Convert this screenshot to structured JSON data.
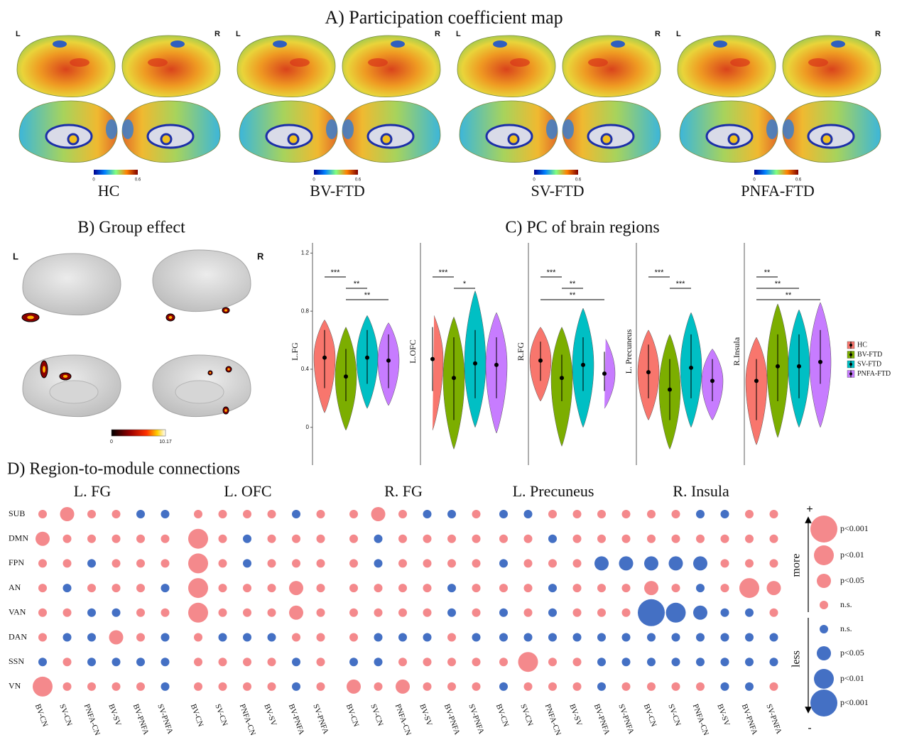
{
  "panel_a": {
    "title": "A) Participation coefficient map",
    "hemisphere_labels": [
      "L",
      "R"
    ],
    "groups": [
      "HC",
      "BV-FTD",
      "SV-FTD",
      "PNFA-FTD"
    ],
    "colorbar_ticks": [
      0,
      0.6
    ]
  },
  "panel_b": {
    "title": "B) Group effect",
    "hemisphere_labels": [
      "L",
      "R"
    ],
    "colorbar_ticks": [
      0,
      10.17
    ]
  },
  "chart_data": {
    "type": "violin",
    "title": "C) PC of brain regions",
    "categories": [
      "L.FG",
      "L.OFC",
      "R.FG",
      "L. Precuneus",
      "R.Insula"
    ],
    "ylim": [
      -0.26,
      1.27
    ],
    "yticks": [
      0,
      0.4,
      0.8,
      1.2
    ],
    "series": [
      {
        "name": "HC",
        "color": "#F8766D",
        "values": [
          0.48,
          0.47,
          0.46,
          0.38,
          0.32
        ],
        "lower": [
          0.27,
          0.25,
          0.32,
          0.2,
          0.05
        ],
        "upper": [
          0.67,
          0.69,
          0.59,
          0.57,
          0.47
        ],
        "min": [
          0.1,
          -0.02,
          0.18,
          0.05,
          -0.12
        ],
        "max": [
          0.74,
          0.79,
          0.69,
          0.67,
          0.62
        ]
      },
      {
        "name": "BV-FTD",
        "color": "#7CAE00",
        "values": [
          0.35,
          0.34,
          0.34,
          0.26,
          0.42
        ],
        "lower": [
          0.18,
          0.05,
          0.18,
          0.05,
          0.18
        ],
        "upper": [
          0.54,
          0.62,
          0.5,
          0.47,
          0.64
        ],
        "min": [
          -0.02,
          -0.15,
          -0.13,
          -0.15,
          -0.07
        ],
        "max": [
          0.69,
          0.76,
          0.69,
          0.64,
          0.85
        ]
      },
      {
        "name": "SV-FTD",
        "color": "#00BFC4",
        "values": [
          0.48,
          0.44,
          0.43,
          0.41,
          0.42
        ],
        "lower": [
          0.3,
          0.2,
          0.25,
          0.2,
          0.2
        ],
        "upper": [
          0.67,
          0.67,
          0.62,
          0.64,
          0.64
        ],
        "min": [
          0.13,
          0,
          0,
          0,
          0
        ],
        "max": [
          0.77,
          0.94,
          0.82,
          0.79,
          0.81
        ]
      },
      {
        "name": "PNFA-FTD",
        "color": "#C77CFF",
        "values": [
          0.46,
          0.43,
          0.37,
          0.32,
          0.45
        ],
        "lower": [
          0.27,
          0.2,
          0.25,
          0.18,
          0.3
        ],
        "upper": [
          0.64,
          0.62,
          0.52,
          0.47,
          0.67
        ],
        "min": [
          0.15,
          -0.04,
          0.13,
          0.05,
          0
        ],
        "max": [
          0.72,
          0.79,
          0.62,
          0.54,
          0.86
        ]
      }
    ],
    "significance": [
      [
        {
          "groups": [
            "HC",
            "BV-FTD"
          ],
          "label": "***"
        },
        {
          "groups": [
            "BV-FTD",
            "SV-FTD"
          ],
          "label": "**"
        },
        {
          "groups": [
            "BV-FTD",
            "PNFA-FTD"
          ],
          "label": "**"
        }
      ],
      [
        {
          "groups": [
            "HC",
            "BV-FTD"
          ],
          "label": "***"
        },
        {
          "groups": [
            "BV-FTD",
            "SV-FTD"
          ],
          "label": "*"
        }
      ],
      [
        {
          "groups": [
            "HC",
            "BV-FTD"
          ],
          "label": "***"
        },
        {
          "groups": [
            "BV-FTD",
            "SV-FTD"
          ],
          "label": "**"
        },
        {
          "groups": [
            "HC",
            "PNFA-FTD"
          ],
          "label": "**"
        }
      ],
      [
        {
          "groups": [
            "HC",
            "BV-FTD"
          ],
          "label": "***"
        },
        {
          "groups": [
            "BV-FTD",
            "SV-FTD"
          ],
          "label": "***"
        }
      ],
      [
        {
          "groups": [
            "HC",
            "BV-FTD"
          ],
          "label": "**"
        },
        {
          "groups": [
            "HC",
            "SV-FTD"
          ],
          "label": "**"
        },
        {
          "groups": [
            "HC",
            "PNFA-FTD"
          ],
          "label": "**"
        }
      ]
    ]
  },
  "panel_d": {
    "title": "D) Region-to-module connections",
    "regions": [
      "L. FG",
      "L. OFC",
      "R. FG",
      "L. Precuneus",
      "R. Insula"
    ],
    "modules": [
      "SUB",
      "DMN",
      "FPN",
      "AN",
      "VAN",
      "DAN",
      "SSN",
      "VN"
    ],
    "contrasts": [
      "BV-CN",
      "SV-CN",
      "PNFA-CN",
      "BV-SV",
      "BV-PNFA",
      "SV-PNFA"
    ],
    "colors": {
      "more": "#F4898C",
      "less": "#4470C4"
    },
    "cells": [
      [
        1,
        2,
        1,
        1,
        -1,
        -1,
        1,
        1,
        1,
        1,
        -1,
        1,
        1,
        2,
        1,
        -1,
        -1,
        1,
        -1,
        -1,
        1,
        1,
        1,
        1,
        1,
        1,
        -1,
        -1,
        1,
        1
      ],
      [
        2,
        1,
        1,
        1,
        1,
        1,
        3,
        1,
        -1,
        1,
        1,
        1,
        1,
        -1,
        1,
        1,
        1,
        1,
        1,
        1,
        -1,
        1,
        1,
        1,
        1,
        1,
        1,
        1,
        1,
        1
      ],
      [
        1,
        1,
        -1,
        1,
        1,
        1,
        3,
        1,
        -1,
        1,
        1,
        1,
        1,
        -1,
        1,
        1,
        1,
        1,
        -1,
        1,
        1,
        1,
        -2,
        -2,
        -2,
        -2,
        -2,
        1,
        1,
        1
      ],
      [
        1,
        -1,
        1,
        1,
        1,
        -1,
        3,
        1,
        1,
        1,
        2,
        1,
        1,
        1,
        1,
        1,
        -1,
        1,
        1,
        1,
        -1,
        1,
        1,
        1,
        2,
        1,
        -1,
        1,
        3,
        2
      ],
      [
        1,
        1,
        -1,
        -1,
        1,
        1,
        3,
        1,
        1,
        1,
        2,
        1,
        1,
        1,
        1,
        1,
        -1,
        1,
        -1,
        1,
        -1,
        1,
        1,
        1,
        -4,
        -3,
        -2,
        -1,
        -1,
        1
      ],
      [
        1,
        -1,
        -1,
        2,
        1,
        -1,
        1,
        -1,
        -1,
        -1,
        1,
        1,
        1,
        -1,
        -1,
        -1,
        1,
        -1,
        -1,
        -1,
        -1,
        -1,
        -1,
        -1,
        -1,
        -1,
        -1,
        -1,
        -1,
        -1
      ],
      [
        -1,
        1,
        -1,
        -1,
        -1,
        -1,
        1,
        1,
        1,
        1,
        -1,
        1,
        -1,
        -1,
        1,
        1,
        1,
        1,
        1,
        3,
        1,
        1,
        -1,
        -1,
        -1,
        -1,
        -1,
        -1,
        -1,
        -1
      ],
      [
        3,
        1,
        1,
        1,
        1,
        -1,
        1,
        1,
        1,
        1,
        -1,
        1,
        2,
        1,
        2,
        1,
        1,
        1,
        -1,
        1,
        1,
        1,
        -1,
        1,
        1,
        1,
        1,
        -1,
        -1,
        1
      ]
    ],
    "legend": {
      "top": "+",
      "bottom": "-",
      "more": "more",
      "less": "less",
      "labels": [
        "p<0.001",
        "p<0.01",
        "p<0.05",
        "n.s.",
        "n.s.",
        "p<0.05",
        "p<0.01",
        "p<0.001"
      ],
      "levels": [
        4,
        3,
        2,
        1,
        -1,
        -2,
        -3,
        -4
      ]
    }
  }
}
